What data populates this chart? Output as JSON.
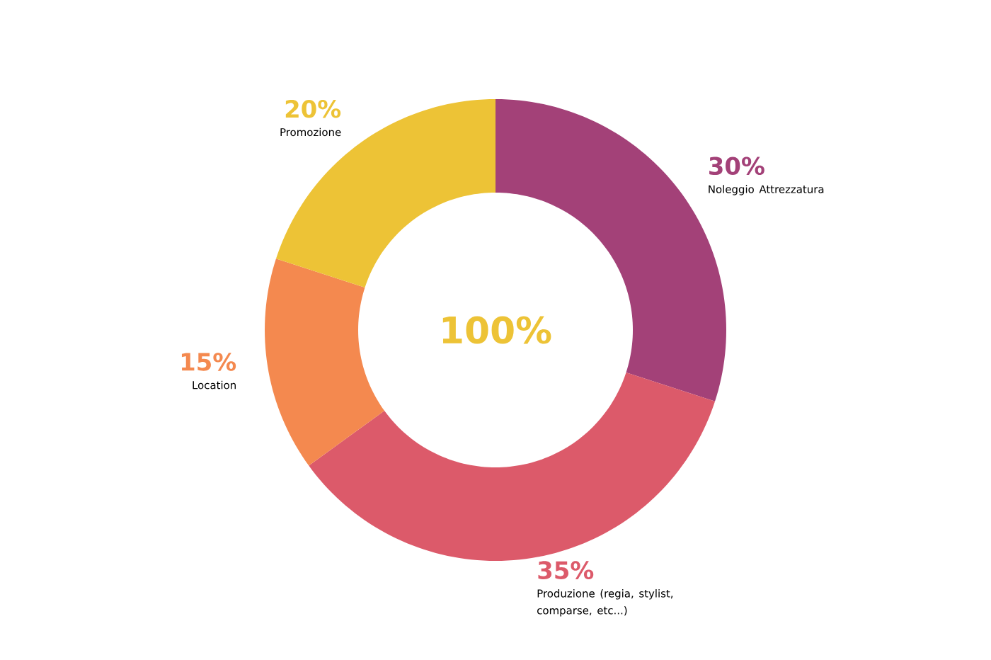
{
  "chart_data": {
    "type": "donut",
    "categories": [
      "Noleggio Attrezzatura",
      "Produzione (regia, stylist, comparse, etc...)",
      "Location",
      "Promozione"
    ],
    "values": [
      30,
      35,
      15,
      20
    ],
    "value_labels": [
      "30%",
      "35%",
      "15%",
      "20%"
    ],
    "colors": [
      "#a34178",
      "#dc5a6a",
      "#f4894f",
      "#edc336"
    ],
    "annotations": [
      "100%"
    ]
  }
}
